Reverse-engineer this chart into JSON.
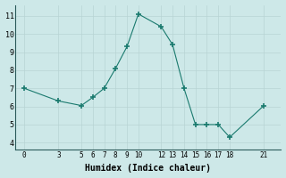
{
  "x": [
    0,
    3,
    5,
    6,
    7,
    8,
    9,
    10,
    12,
    13,
    14,
    15,
    16,
    17,
    18,
    21
  ],
  "y": [
    7.0,
    6.3,
    6.05,
    6.5,
    7.0,
    8.1,
    9.3,
    11.1,
    10.4,
    9.4,
    7.0,
    5.0,
    5.0,
    5.0,
    4.3,
    6.05
  ],
  "line_color": "#1a7a6e",
  "marker": "+",
  "marker_size": 4,
  "background_color": "#cde8e8",
  "grid_color": "#b8d4d4",
  "xlabel": "Humidex (Indice chaleur)",
  "xlabel_fontsize": 7,
  "xticks": [
    0,
    3,
    5,
    6,
    7,
    8,
    9,
    10,
    12,
    13,
    14,
    15,
    16,
    17,
    18,
    21
  ],
  "yticks": [
    4,
    5,
    6,
    7,
    8,
    9,
    10,
    11
  ],
  "ylim": [
    3.6,
    11.6
  ],
  "xlim": [
    -0.8,
    22.5
  ]
}
